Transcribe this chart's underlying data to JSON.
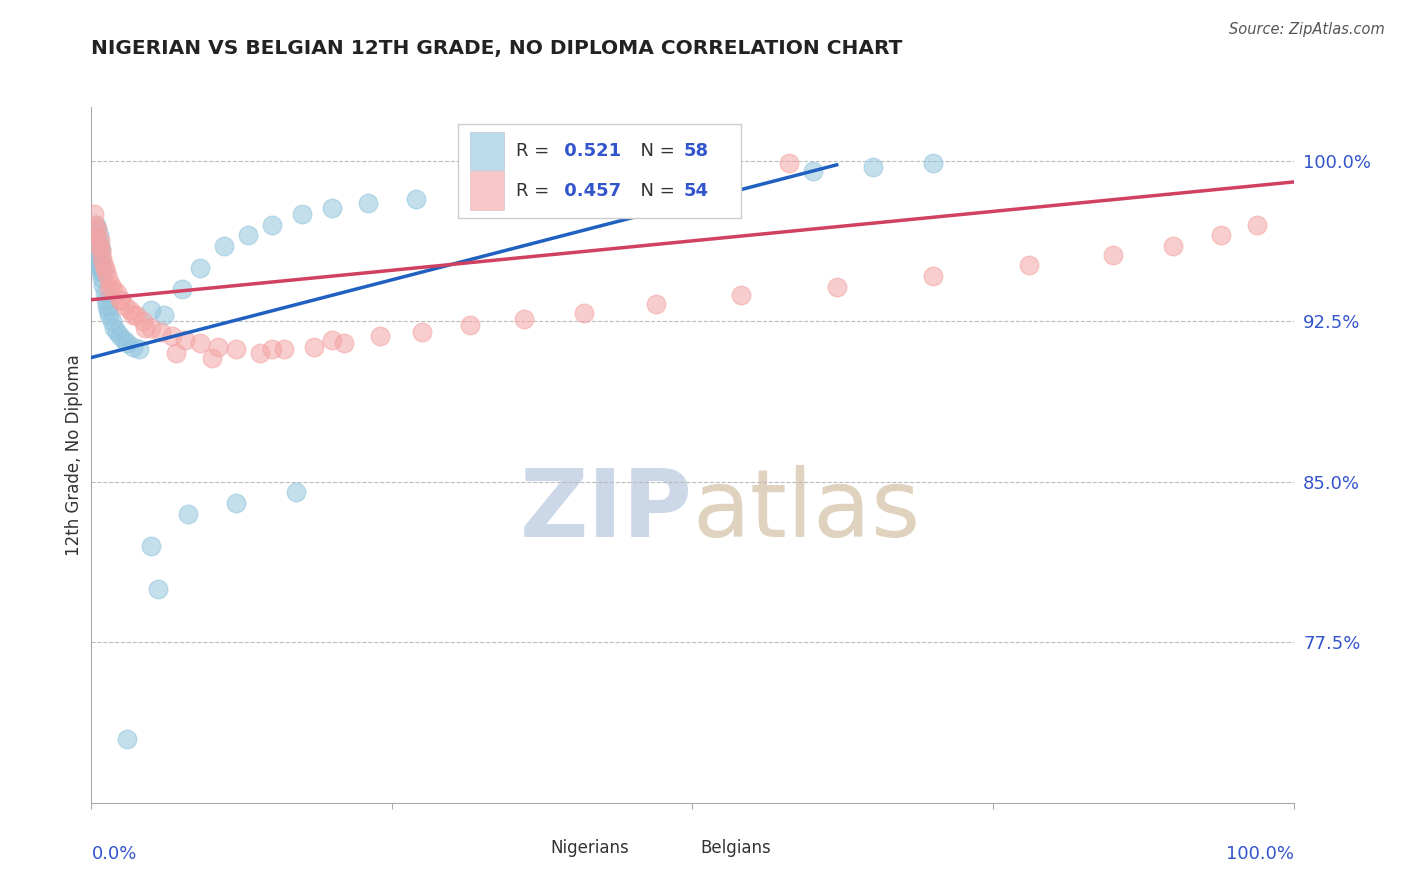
{
  "title": "NIGERIAN VS BELGIAN 12TH GRADE, NO DIPLOMA CORRELATION CHART",
  "source": "Source: ZipAtlas.com",
  "ylabel": "12th Grade, No Diploma",
  "ytick_labels": [
    "100.0%",
    "92.5%",
    "85.0%",
    "77.5%"
  ],
  "ytick_values": [
    1.0,
    0.925,
    0.85,
    0.775
  ],
  "xmin": 0.0,
  "xmax": 1.0,
  "ymin": 0.7,
  "ymax": 1.025,
  "nigerian_color": "#92c5de",
  "belgian_color": "#f4a4a4",
  "trendline_blue": "#2060c0",
  "trendline_pink": "#d04060",
  "title_color": "#222222",
  "axis_value_color": "#3355cc",
  "watermark_color": "#ccd8e8",
  "nigerian_x": [
    0.002,
    0.003,
    0.003,
    0.004,
    0.004,
    0.005,
    0.005,
    0.005,
    0.006,
    0.006,
    0.006,
    0.007,
    0.007,
    0.007,
    0.008,
    0.008,
    0.008,
    0.009,
    0.009,
    0.01,
    0.01,
    0.011,
    0.012,
    0.013,
    0.014,
    0.015,
    0.017,
    0.019,
    0.021,
    0.024,
    0.027,
    0.03,
    0.035,
    0.04,
    0.05,
    0.06,
    0.075,
    0.09,
    0.11,
    0.13,
    0.15,
    0.175,
    0.2,
    0.23,
    0.27,
    0.32,
    0.38,
    0.44,
    0.52,
    0.6,
    0.65,
    0.7,
    0.05,
    0.08,
    0.12,
    0.17,
    0.03,
    0.055
  ],
  "nigerian_y": [
    0.96,
    0.955,
    0.965,
    0.958,
    0.97,
    0.963,
    0.957,
    0.968,
    0.952,
    0.96,
    0.965,
    0.955,
    0.95,
    0.96,
    0.948,
    0.953,
    0.958,
    0.945,
    0.95,
    0.942,
    0.948,
    0.938,
    0.935,
    0.932,
    0.93,
    0.928,
    0.925,
    0.922,
    0.92,
    0.918,
    0.916,
    0.915,
    0.913,
    0.912,
    0.93,
    0.928,
    0.94,
    0.95,
    0.96,
    0.965,
    0.97,
    0.975,
    0.978,
    0.98,
    0.982,
    0.985,
    0.988,
    0.99,
    0.993,
    0.995,
    0.997,
    0.999,
    0.82,
    0.835,
    0.84,
    0.845,
    0.73,
    0.8
  ],
  "belgian_x": [
    0.002,
    0.003,
    0.004,
    0.005,
    0.006,
    0.007,
    0.008,
    0.009,
    0.01,
    0.011,
    0.012,
    0.014,
    0.016,
    0.018,
    0.021,
    0.024,
    0.028,
    0.032,
    0.037,
    0.043,
    0.05,
    0.058,
    0.067,
    0.078,
    0.09,
    0.105,
    0.12,
    0.14,
    0.16,
    0.185,
    0.21,
    0.24,
    0.275,
    0.315,
    0.36,
    0.41,
    0.47,
    0.54,
    0.62,
    0.7,
    0.78,
    0.85,
    0.9,
    0.94,
    0.97,
    0.015,
    0.025,
    0.035,
    0.045,
    0.07,
    0.1,
    0.15,
    0.2,
    0.58
  ],
  "belgian_y": [
    0.975,
    0.97,
    0.965,
    0.968,
    0.96,
    0.963,
    0.958,
    0.955,
    0.952,
    0.95,
    0.948,
    0.945,
    0.942,
    0.94,
    0.938,
    0.935,
    0.932,
    0.93,
    0.928,
    0.925,
    0.922,
    0.92,
    0.918,
    0.916,
    0.915,
    0.913,
    0.912,
    0.91,
    0.912,
    0.913,
    0.915,
    0.918,
    0.92,
    0.923,
    0.926,
    0.929,
    0.933,
    0.937,
    0.941,
    0.946,
    0.951,
    0.956,
    0.96,
    0.965,
    0.97,
    0.94,
    0.935,
    0.928,
    0.922,
    0.91,
    0.908,
    0.912,
    0.916,
    0.999
  ],
  "nig_trend_x": [
    0.0,
    0.62
  ],
  "nig_trend_y": [
    0.908,
    0.998
  ],
  "bel_trend_x": [
    0.0,
    1.0
  ],
  "bel_trend_y": [
    0.935,
    0.99
  ]
}
